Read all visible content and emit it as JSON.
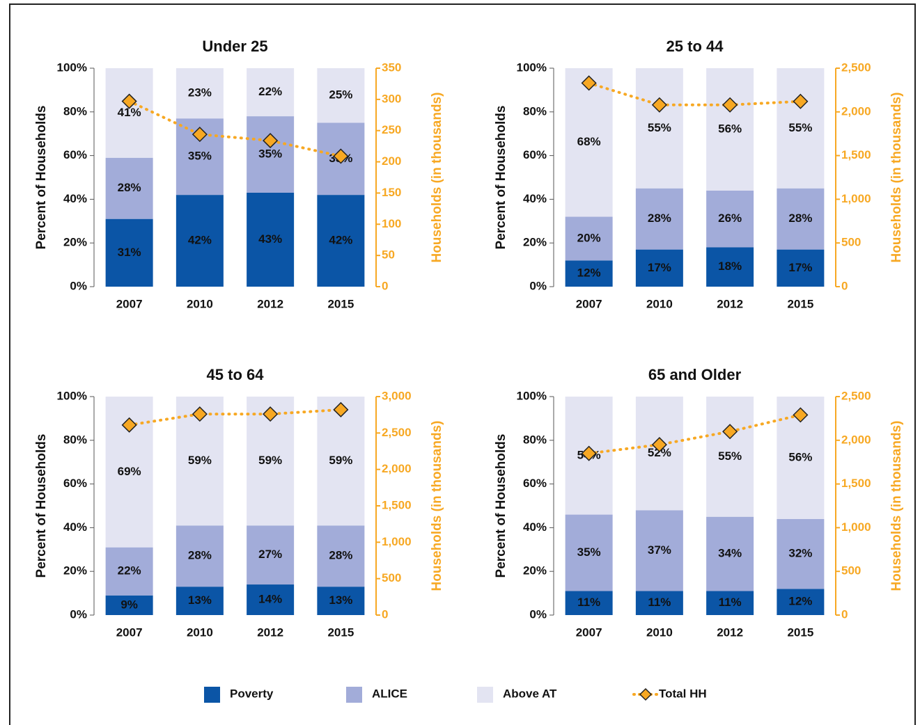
{
  "chart_data": [
    {
      "type": "bar",
      "title": "Under 25",
      "stacked": true,
      "categories": [
        "2007",
        "2010",
        "2012",
        "2015"
      ],
      "ylabel": "Percent of Households",
      "y2label": "Households (in thousands)",
      "ylim": [
        0,
        100
      ],
      "yticks": [
        {
          "value": 0,
          "label": "0%"
        },
        {
          "value": 20,
          "label": "20%"
        },
        {
          "value": 40,
          "label": "40%"
        },
        {
          "value": 60,
          "label": "60%"
        },
        {
          "value": 80,
          "label": "80%"
        },
        {
          "value": 100,
          "label": "100%"
        }
      ],
      "y2lim": [
        0,
        350
      ],
      "y2ticks": [
        0,
        50,
        100,
        150,
        200,
        250,
        300,
        350
      ],
      "series": [
        {
          "name": "Poverty",
          "color": "#0b55a6",
          "values": [
            31,
            42,
            43,
            42
          ],
          "value_labels": [
            "31%",
            "42%",
            "43%",
            "42%"
          ]
        },
        {
          "name": "ALICE",
          "color": "#a2acd9",
          "values": [
            28,
            35,
            35,
            33
          ],
          "value_labels": [
            "28%",
            "35%",
            "35%",
            "33%"
          ]
        },
        {
          "name": "Above AT",
          "color": "#e3e4f2",
          "values": [
            41,
            23,
            22,
            25
          ],
          "value_labels": [
            "41%",
            "23%",
            "22%",
            "25%"
          ]
        },
        {
          "name": "Total HH",
          "color": "#f7a823",
          "type": "line",
          "axis": "y2",
          "values": [
            297,
            244,
            234,
            209
          ]
        }
      ]
    },
    {
      "type": "bar",
      "title": "25 to 44",
      "stacked": true,
      "categories": [
        "2007",
        "2010",
        "2012",
        "2015"
      ],
      "ylabel": "Percent of Households",
      "y2label": "Households (in thousands)",
      "ylim": [
        0,
        100
      ],
      "yticks": [
        {
          "value": 0,
          "label": "0%"
        },
        {
          "value": 20,
          "label": "20%"
        },
        {
          "value": 40,
          "label": "40%"
        },
        {
          "value": 60,
          "label": "60%"
        },
        {
          "value": 80,
          "label": "80%"
        },
        {
          "value": 100,
          "label": "100%"
        }
      ],
      "y2lim": [
        0,
        2500
      ],
      "y2ticks": [
        0,
        500,
        {
          "value": 1000,
          "label": "1,000"
        },
        {
          "value": 1500,
          "label": "1,500"
        },
        {
          "value": 2000,
          "label": "2,000"
        },
        {
          "value": 2500,
          "label": "2,500"
        }
      ],
      "series": [
        {
          "name": "Poverty",
          "color": "#0b55a6",
          "values": [
            12,
            17,
            18,
            17
          ],
          "value_labels": [
            "12%",
            "17%",
            "18%",
            "17%"
          ]
        },
        {
          "name": "ALICE",
          "color": "#a2acd9",
          "values": [
            20,
            28,
            26,
            28
          ],
          "value_labels": [
            "20%",
            "28%",
            "26%",
            "28%"
          ]
        },
        {
          "name": "Above AT",
          "color": "#e3e4f2",
          "values": [
            68,
            55,
            56,
            55
          ],
          "value_labels": [
            "68%",
            "55%",
            "56%",
            "55%"
          ]
        },
        {
          "name": "Total HH",
          "color": "#f7a823",
          "type": "line",
          "axis": "y2",
          "values": [
            2330,
            2080,
            2080,
            2120
          ]
        }
      ]
    },
    {
      "type": "bar",
      "title": "45 to 64",
      "stacked": true,
      "categories": [
        "2007",
        "2010",
        "2012",
        "2015"
      ],
      "ylabel": "Percent of Households",
      "y2label": "Households (in thousands)",
      "ylim": [
        0,
        100
      ],
      "yticks": [
        {
          "value": 0,
          "label": "0%"
        },
        {
          "value": 20,
          "label": "20%"
        },
        {
          "value": 40,
          "label": "40%"
        },
        {
          "value": 60,
          "label": "60%"
        },
        {
          "value": 80,
          "label": "80%"
        },
        {
          "value": 100,
          "label": "100%"
        }
      ],
      "y2lim": [
        0,
        3000
      ],
      "y2ticks": [
        0,
        500,
        {
          "value": 1000,
          "label": "1,000"
        },
        {
          "value": 1500,
          "label": "1,500"
        },
        {
          "value": 2000,
          "label": "2,000"
        },
        {
          "value": 2500,
          "label": "2,500"
        },
        {
          "value": 3000,
          "label": "3,000"
        }
      ],
      "series": [
        {
          "name": "Poverty",
          "color": "#0b55a6",
          "values": [
            9,
            13,
            14,
            13
          ],
          "value_labels": [
            "9%",
            "13%",
            "14%",
            "13%"
          ]
        },
        {
          "name": "ALICE",
          "color": "#a2acd9",
          "values": [
            22,
            28,
            27,
            28
          ],
          "value_labels": [
            "22%",
            "28%",
            "27%",
            "28%"
          ]
        },
        {
          "name": "Above AT",
          "color": "#e3e4f2",
          "values": [
            69,
            59,
            59,
            59
          ],
          "value_labels": [
            "69%",
            "59%",
            "59%",
            "59%"
          ]
        },
        {
          "name": "Total HH",
          "color": "#f7a823",
          "type": "line",
          "axis": "y2",
          "values": [
            2610,
            2760,
            2760,
            2820
          ]
        }
      ]
    },
    {
      "type": "bar",
      "title": "65 and Older",
      "stacked": true,
      "categories": [
        "2007",
        "2010",
        "2012",
        "2015"
      ],
      "ylabel": "Percent of Households",
      "y2label": "Households (in thousands)",
      "ylim": [
        0,
        100
      ],
      "yticks": [
        {
          "value": 0,
          "label": "0%"
        },
        {
          "value": 20,
          "label": "20%"
        },
        {
          "value": 40,
          "label": "40%"
        },
        {
          "value": 60,
          "label": "60%"
        },
        {
          "value": 80,
          "label": "80%"
        },
        {
          "value": 100,
          "label": "100%"
        }
      ],
      "y2lim": [
        0,
        2500
      ],
      "y2ticks": [
        0,
        500,
        {
          "value": 1000,
          "label": "1,000"
        },
        {
          "value": 1500,
          "label": "1,500"
        },
        {
          "value": 2000,
          "label": "2,000"
        },
        {
          "value": 2500,
          "label": "2,500"
        }
      ],
      "series": [
        {
          "name": "Poverty",
          "color": "#0b55a6",
          "values": [
            11,
            11,
            11,
            12
          ],
          "value_labels": [
            "11%",
            "11%",
            "11%",
            "12%"
          ]
        },
        {
          "name": "ALICE",
          "color": "#a2acd9",
          "values": [
            35,
            37,
            34,
            32
          ],
          "value_labels": [
            "35%",
            "37%",
            "34%",
            "32%"
          ]
        },
        {
          "name": "Above AT",
          "color": "#e3e4f2",
          "values": [
            54,
            52,
            55,
            56
          ],
          "value_labels": [
            "54%",
            "52%",
            "55%",
            "56%"
          ]
        },
        {
          "name": "Total HH",
          "color": "#f7a823",
          "type": "line",
          "axis": "y2",
          "values": [
            1850,
            1950,
            2100,
            2290
          ]
        }
      ]
    }
  ]
}
